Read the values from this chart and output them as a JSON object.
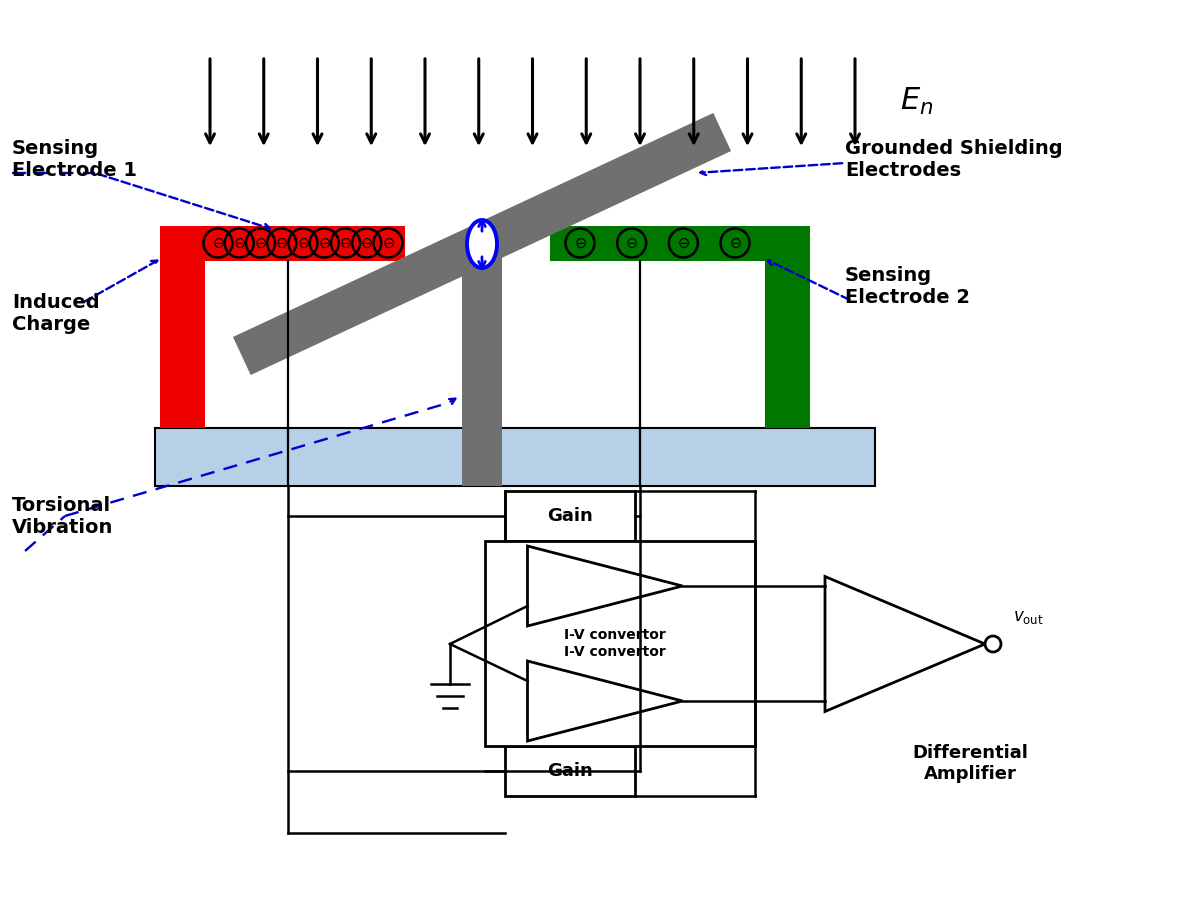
{
  "fig_width": 12.0,
  "fig_height": 9.21,
  "bg_color": "#ffffff",
  "red_color": "#ee0000",
  "green_color": "#007700",
  "gray_dark": "#707070",
  "light_blue": "#b8cfe8",
  "blue_dash": "#0000cc",
  "label_en": "$E_n$",
  "label_sensing1": "Sensing\nElectrode 1",
  "label_sensing2": "Sensing\nElectrode 2",
  "label_grounded": "Grounded Shielding\nElectrodes",
  "label_induced": "Induced\nCharge",
  "label_torsional": "Torsional\nVibration",
  "label_gain": "Gain",
  "label_diff_amp": "Differential\nAmplifier",
  "label_vout": "$v_{\\mathrm{out}}$"
}
